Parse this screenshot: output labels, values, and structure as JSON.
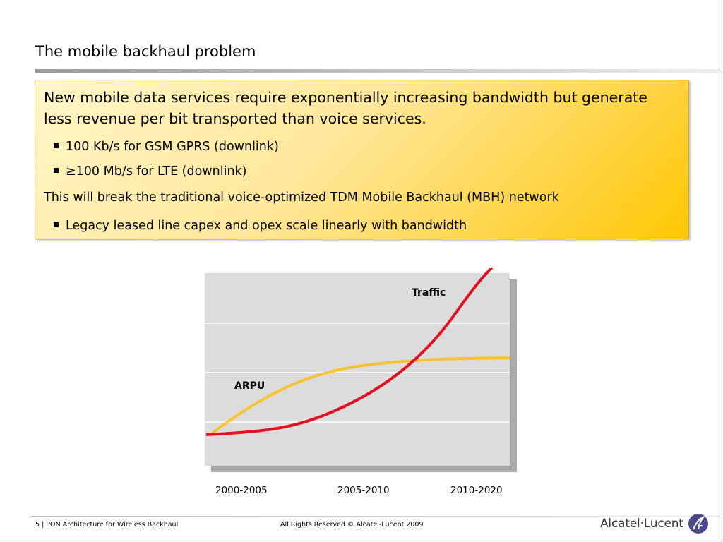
{
  "slide": {
    "title": "The mobile backhaul problem",
    "callout": {
      "lead": "New mobile data services require exponentially increasing bandwidth but generate less revenue per bit transported than voice services.",
      "bullets_1": [
        "100 Kb/s for GSM GPRS (downlink)",
        "≥100 Mb/s for LTE (downlink)"
      ],
      "line2": "This will break the traditional voice-optimized TDM Mobile Backhaul (MBH) network",
      "bullets_2": [
        "Legacy leased line capex and opex scale linearly with bandwidth"
      ]
    },
    "footer": {
      "left": "5 | PON Architecture for Wireless Backhaul",
      "center": "All Rights Reserved © Alcatel-Lucent 2009",
      "logo_text": "Alcatel·Lucent",
      "logo_icon": "alcatel-lucent-logo-icon"
    }
  },
  "chart_data": {
    "type": "line",
    "x": [
      "2000-2005",
      "2005-2010",
      "2010-2020"
    ],
    "series": [
      {
        "name": "Traffic",
        "color": "#e3101f",
        "trend": "exponential increase"
      },
      {
        "name": "ARPU",
        "color": "#f8c330",
        "trend": "logarithmic increase then flattening"
      }
    ],
    "grid": true,
    "colors": {
      "plot_bg": "#dcdcdc",
      "gridline": "#ffffff",
      "shadow": "#a9a9a9"
    }
  }
}
